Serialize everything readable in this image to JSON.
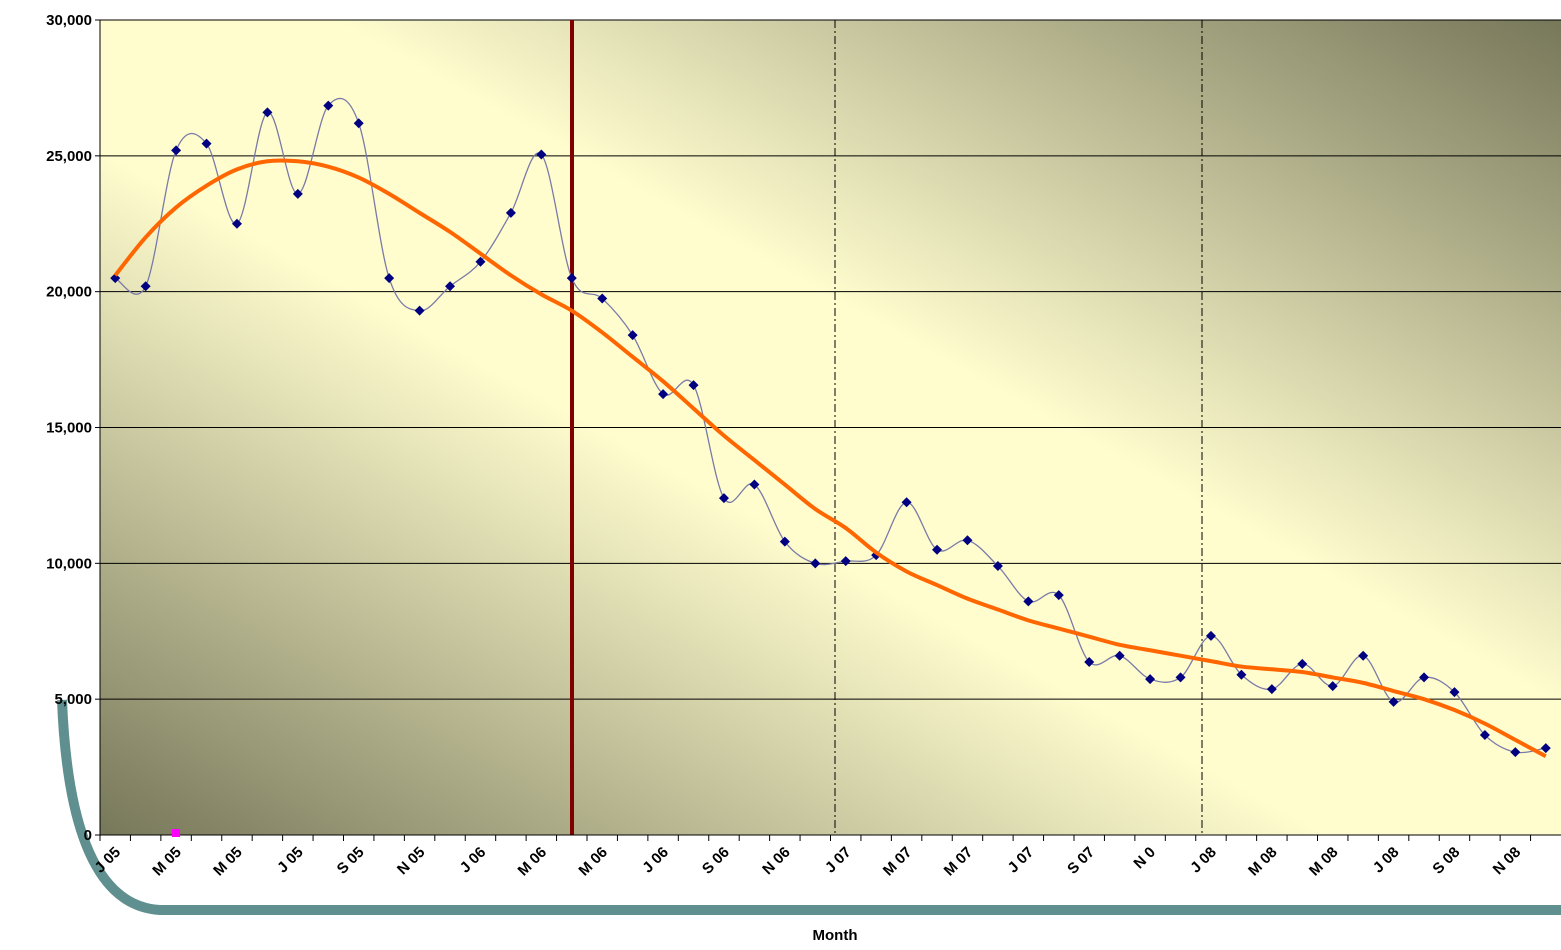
{
  "chart_data": {
    "type": "line",
    "x_label": "Month",
    "categories": [
      "J 05",
      null,
      "M 05",
      null,
      "M 05",
      null,
      "J 05",
      null,
      "S 05",
      null,
      "N 05",
      null,
      "J 06",
      null,
      "M 06",
      null,
      "M 06",
      null,
      "J 06",
      null,
      "S 06",
      null,
      "N 06",
      null,
      "J 07",
      null,
      "M 07",
      null,
      "M 07",
      null,
      "J 07",
      null,
      "S 07",
      null,
      "N 0",
      null,
      "J 08",
      null,
      "M 08",
      null,
      "M 08",
      null,
      "J 08",
      null,
      "S 08",
      null,
      "N 08",
      null
    ],
    "series": [
      {
        "color": "#000080",
        "line_color": "#7a7aa8",
        "smooth": true,
        "marker": "diamond",
        "values": [
          20500,
          20200,
          25200,
          25450,
          22500,
          26600,
          23600,
          26850,
          26200,
          20500,
          19300,
          20200,
          21100,
          22900,
          25050,
          20500,
          19750,
          18400,
          16230,
          16560,
          12400,
          12900,
          10800,
          10000,
          10080,
          10300,
          12250,
          10500,
          10850,
          9900,
          8600,
          8830,
          6370,
          6600,
          5740,
          5800,
          7330,
          5900,
          5370,
          6300,
          5480,
          6600,
          4900,
          5800,
          5260,
          3680,
          3050,
          3200
        ]
      },
      {
        "color": "#ff6600",
        "smooth": true,
        "marker": "none",
        "values": [
          20600,
          22000,
          23100,
          23900,
          24500,
          24800,
          24800,
          24600,
          24200,
          23600,
          22900,
          22200,
          21400,
          20600,
          19900,
          19300,
          18500,
          17600,
          16700,
          15700,
          14700,
          13800,
          12900,
          12000,
          11300,
          10400,
          9700,
          9200,
          8700,
          8300,
          7900,
          7600,
          7300,
          7000,
          6800,
          6600,
          6400,
          6200,
          6100,
          6000,
          5800,
          5600,
          5300,
          5000,
          4600,
          4100,
          3500,
          2900
        ]
      }
    ],
    "ylim": [
      0,
      30000
    ],
    "yticks": [
      0,
      {
        "value": 5000,
        "label": "5,000"
      },
      {
        "value": 10000,
        "label": "10,000"
      },
      {
        "value": 15000,
        "label": "15,000"
      },
      {
        "value": 20000,
        "label": "20,000"
      },
      {
        "value": 25000,
        "label": "25,000"
      },
      {
        "value": 30000,
        "label": "30,000"
      }
    ],
    "grid": true
  }
}
